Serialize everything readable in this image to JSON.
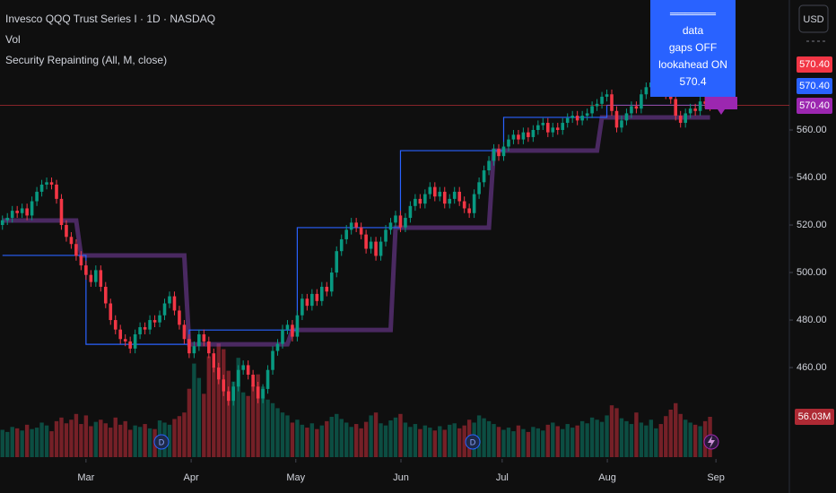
{
  "chart_data": {
    "type": "candlestick",
    "title": "Invesco QQQ Trust Series I · 1D · NASDAQ",
    "indicator_name": "Security Repainting (All, M, close)",
    "currency": "USD",
    "up_color": "#089981",
    "down_color": "#f23645",
    "xlim": [
      -0.5,
      158.5
    ],
    "xticks": [
      {
        "value": 17.0,
        "label": "Mar"
      },
      {
        "value": 38.4,
        "label": "Apr"
      },
      {
        "value": 59.7,
        "label": "May"
      },
      {
        "value": 81.1,
        "label": "Jun"
      },
      {
        "value": 101.7,
        "label": "Jul"
      },
      {
        "value": 123.1,
        "label": "Aug"
      },
      {
        "value": 145.2,
        "label": "Sep"
      }
    ],
    "ylim": [
      422.3,
      614.7
    ],
    "yticks": [
      {
        "value": 460,
        "label": "460.00"
      },
      {
        "value": 480,
        "label": "480.00"
      },
      {
        "value": 500,
        "label": "500.00"
      },
      {
        "value": 520,
        "label": "520.00"
      },
      {
        "value": 540,
        "label": "540.00"
      },
      {
        "value": 560,
        "label": "560.00"
      }
    ],
    "open": [
      520,
      522,
      523,
      526,
      525,
      527,
      524,
      530,
      534,
      537,
      538,
      537,
      531,
      520,
      515,
      512,
      507,
      503,
      499,
      496,
      501,
      494,
      487,
      480,
      476,
      472,
      471,
      468,
      474,
      477,
      476,
      480,
      479,
      482,
      487,
      490,
      484,
      478,
      472,
      466,
      469,
      474,
      471,
      466,
      460,
      455,
      450,
      446,
      452,
      459,
      461,
      457,
      452,
      447,
      451,
      459,
      467,
      470,
      476,
      478,
      473,
      482,
      489,
      486,
      491,
      488,
      494,
      492,
      500,
      509,
      514,
      518,
      521,
      519,
      516,
      510,
      513,
      507,
      513,
      518,
      521,
      524,
      519,
      523,
      528,
      531,
      529,
      533,
      536,
      532,
      534,
      529,
      531,
      534,
      530,
      527,
      525,
      533,
      538,
      543,
      547,
      552,
      549,
      553,
      556,
      558,
      556,
      559,
      557,
      560,
      562,
      563,
      559,
      561,
      560,
      563,
      565,
      566,
      564,
      566,
      567,
      570,
      571,
      574,
      575,
      568,
      561,
      564,
      567,
      570,
      569,
      575,
      578,
      580,
      582,
      579,
      575,
      573,
      566,
      563,
      567,
      569,
      568,
      572,
      571
    ],
    "high": [
      524,
      525,
      528,
      528,
      529,
      529,
      532,
      536,
      539,
      540,
      540,
      539,
      533,
      522,
      517,
      514,
      509,
      505,
      501,
      503,
      503,
      496,
      489,
      482,
      478,
      474,
      473,
      476,
      479,
      479,
      482,
      482,
      484,
      489,
      492,
      492,
      486,
      480,
      474,
      471,
      476,
      476,
      473,
      468,
      462,
      457,
      452,
      454,
      461,
      463,
      463,
      459,
      454,
      453,
      461,
      469,
      472,
      478,
      480,
      480,
      484,
      491,
      491,
      493,
      493,
      496,
      496,
      502,
      511,
      516,
      520,
      523,
      523,
      521,
      518,
      515,
      515,
      515,
      520,
      523,
      526,
      526,
      525,
      530,
      533,
      533,
      535,
      538,
      538,
      536,
      536,
      533,
      536,
      536,
      532,
      529,
      535,
      540,
      545,
      549,
      554,
      554,
      555,
      558,
      560,
      560,
      561,
      561,
      562,
      564,
      565,
      565,
      563,
      563,
      565,
      567,
      568,
      568,
      568,
      569,
      572,
      573,
      576,
      577,
      577,
      570,
      566,
      569,
      572,
      572,
      577,
      580,
      582,
      584,
      584,
      581,
      577,
      575,
      568,
      569,
      571,
      571,
      574,
      574,
      574
    ],
    "low": [
      518,
      520,
      521,
      523,
      523,
      522,
      522,
      528,
      532,
      535,
      535,
      529,
      518,
      513,
      510,
      505,
      501,
      497,
      494,
      494,
      492,
      485,
      478,
      474,
      470,
      469,
      466,
      466,
      472,
      474,
      474,
      477,
      477,
      480,
      485,
      482,
      476,
      470,
      464,
      464,
      467,
      469,
      464,
      458,
      453,
      448,
      444,
      444,
      450,
      457,
      455,
      450,
      445,
      445,
      449,
      457,
      465,
      468,
      474,
      471,
      471,
      480,
      484,
      484,
      486,
      486,
      490,
      490,
      498,
      507,
      512,
      516,
      517,
      514,
      508,
      508,
      505,
      505,
      511,
      516,
      519,
      517,
      517,
      521,
      526,
      527,
      527,
      531,
      530,
      530,
      527,
      527,
      529,
      528,
      525,
      523,
      523,
      531,
      536,
      541,
      545,
      547,
      547,
      551,
      554,
      554,
      554,
      555,
      555,
      558,
      560,
      557,
      557,
      558,
      558,
      561,
      563,
      562,
      562,
      564,
      565,
      568,
      569,
      572,
      566,
      559,
      559,
      562,
      565,
      567,
      567,
      573,
      576,
      578,
      577,
      573,
      571,
      564,
      561,
      561,
      565,
      566,
      566,
      569,
      568
    ],
    "close": [
      522,
      523,
      526,
      525,
      527,
      524,
      530,
      534,
      537,
      538,
      537,
      531,
      520,
      515,
      512,
      507,
      503,
      499,
      496,
      501,
      494,
      487,
      480,
      476,
      472,
      471,
      468,
      474,
      477,
      476,
      480,
      479,
      482,
      487,
      490,
      484,
      478,
      472,
      466,
      469,
      474,
      471,
      466,
      460,
      455,
      450,
      446,
      452,
      459,
      461,
      457,
      452,
      447,
      451,
      459,
      467,
      470,
      476,
      478,
      473,
      482,
      489,
      486,
      491,
      488,
      494,
      492,
      500,
      509,
      514,
      518,
      521,
      519,
      516,
      510,
      513,
      507,
      513,
      518,
      521,
      524,
      519,
      523,
      528,
      531,
      529,
      533,
      536,
      532,
      534,
      529,
      531,
      534,
      530,
      527,
      525,
      533,
      538,
      543,
      547,
      552,
      549,
      553,
      556,
      558,
      556,
      559,
      557,
      560,
      562,
      563,
      559,
      561,
      560,
      563,
      565,
      566,
      564,
      566,
      567,
      570,
      571,
      574,
      575,
      568,
      561,
      564,
      567,
      570,
      569,
      575,
      578,
      580,
      582,
      579,
      575,
      573,
      566,
      563,
      567,
      569,
      568,
      572,
      571,
      570.4
    ],
    "volume": {
      "name": "Vol",
      "vlim": [
        0,
        635
      ],
      "last_value_label": "56.03M",
      "values": [
        38,
        35,
        42,
        40,
        37,
        45,
        39,
        41,
        48,
        44,
        36,
        50,
        55,
        47,
        52,
        60,
        46,
        58,
        43,
        49,
        52,
        47,
        41,
        55,
        45,
        50,
        38,
        44,
        42,
        46,
        40,
        39,
        51,
        48,
        45,
        53,
        57,
        62,
        95,
        130,
        110,
        88,
        140,
        125,
        158,
        150,
        120,
        105,
        138,
        90,
        85,
        100,
        115,
        98,
        80,
        75,
        68,
        62,
        58,
        48,
        52,
        45,
        41,
        47,
        39,
        44,
        50,
        56,
        60,
        53,
        48,
        42,
        46,
        40,
        49,
        58,
        62,
        47,
        44,
        51,
        55,
        60,
        48,
        42,
        46,
        39,
        44,
        41,
        37,
        43,
        38,
        45,
        47,
        40,
        44,
        52,
        48,
        58,
        54,
        50,
        46,
        42,
        38,
        41,
        36,
        44,
        39,
        35,
        42,
        40,
        37,
        45,
        48,
        43,
        39,
        46,
        41,
        44,
        50,
        47,
        55,
        52,
        49,
        58,
        72,
        68,
        54,
        50,
        46,
        62,
        48,
        44,
        52,
        40,
        46,
        57,
        66,
        75,
        60,
        52,
        48,
        45,
        43,
        50,
        56.03
      ]
    },
    "series": [
      {
        "color": "#7b3fa6",
        "x": [
          0,
          15,
          16,
          37,
          38,
          58,
          59,
          79,
          80,
          99,
          100,
          121,
          122,
          144
        ],
        "values": [
          521.9,
          521.9,
          507.2,
          507.2,
          469.8,
          469.8,
          475.8,
          475.8,
          518.9,
          518.9,
          551.3,
          551.3,
          565.3,
          565.3
        ]
      },
      {
        "color": "#2962ff",
        "x": [
          0,
          17,
          17,
          38,
          38,
          60,
          60,
          81,
          81,
          102,
          102,
          123,
          123,
          144
        ],
        "values": [
          507.2,
          507.2,
          469.8,
          469.8,
          475.8,
          475.8,
          518.9,
          518.9,
          551.3,
          551.3,
          565.3,
          565.3,
          570.4,
          570.4
        ]
      }
    ],
    "price_tags": [
      {
        "value": 570.4,
        "label": "570.40",
        "color": "#f23645"
      },
      {
        "value": 570.4,
        "label": "570.40",
        "color": "#2962ff"
      },
      {
        "value": 570.4,
        "label": "570.40",
        "color": "#9c27b0"
      }
    ],
    "annotation": [
      "══════",
      "data",
      "gaps OFF",
      "lookahead ON",
      "570.4"
    ]
  }
}
